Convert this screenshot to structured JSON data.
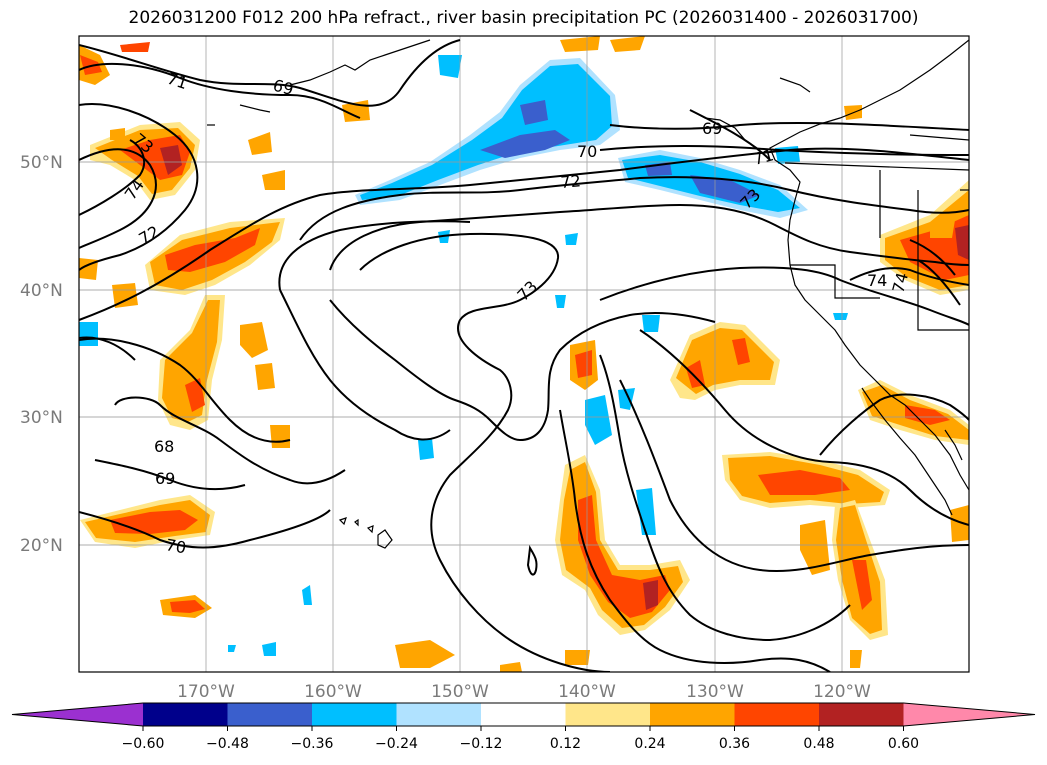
{
  "title": "2026031200 F012 200 hPa refract., river basin precipitation PC (2026031400 - 2026031700)",
  "map": {
    "projection": "plate-carree",
    "lon_range": [
      -180,
      -110
    ],
    "lat_range": [
      10,
      60
    ],
    "lat_labels": [
      "50°N",
      "40°N",
      "30°N",
      "20°N"
    ],
    "lon_labels": [
      "170°W",
      "160°W",
      "150°W",
      "140°W",
      "130°W",
      "120°W"
    ],
    "contour_labels": [
      "71",
      "69",
      "73",
      "74",
      "72",
      "68",
      "69",
      "70",
      "69",
      "70",
      "72",
      "73",
      "71",
      "73",
      "74",
      "74"
    ]
  },
  "colorbar": {
    "ticks": [
      "−0.60",
      "−0.48",
      "−0.36",
      "−0.24",
      "−0.12",
      "0.12",
      "0.24",
      "0.36",
      "0.48",
      "0.60"
    ],
    "colors": [
      "#9b30d0",
      "#00008b",
      "#3a5fcd",
      "#00bfff",
      "#b0e2ff",
      "#ffffff",
      "#ffe68a",
      "#ffa500",
      "#ff4500",
      "#b22222",
      "#ff88aa"
    ]
  }
}
